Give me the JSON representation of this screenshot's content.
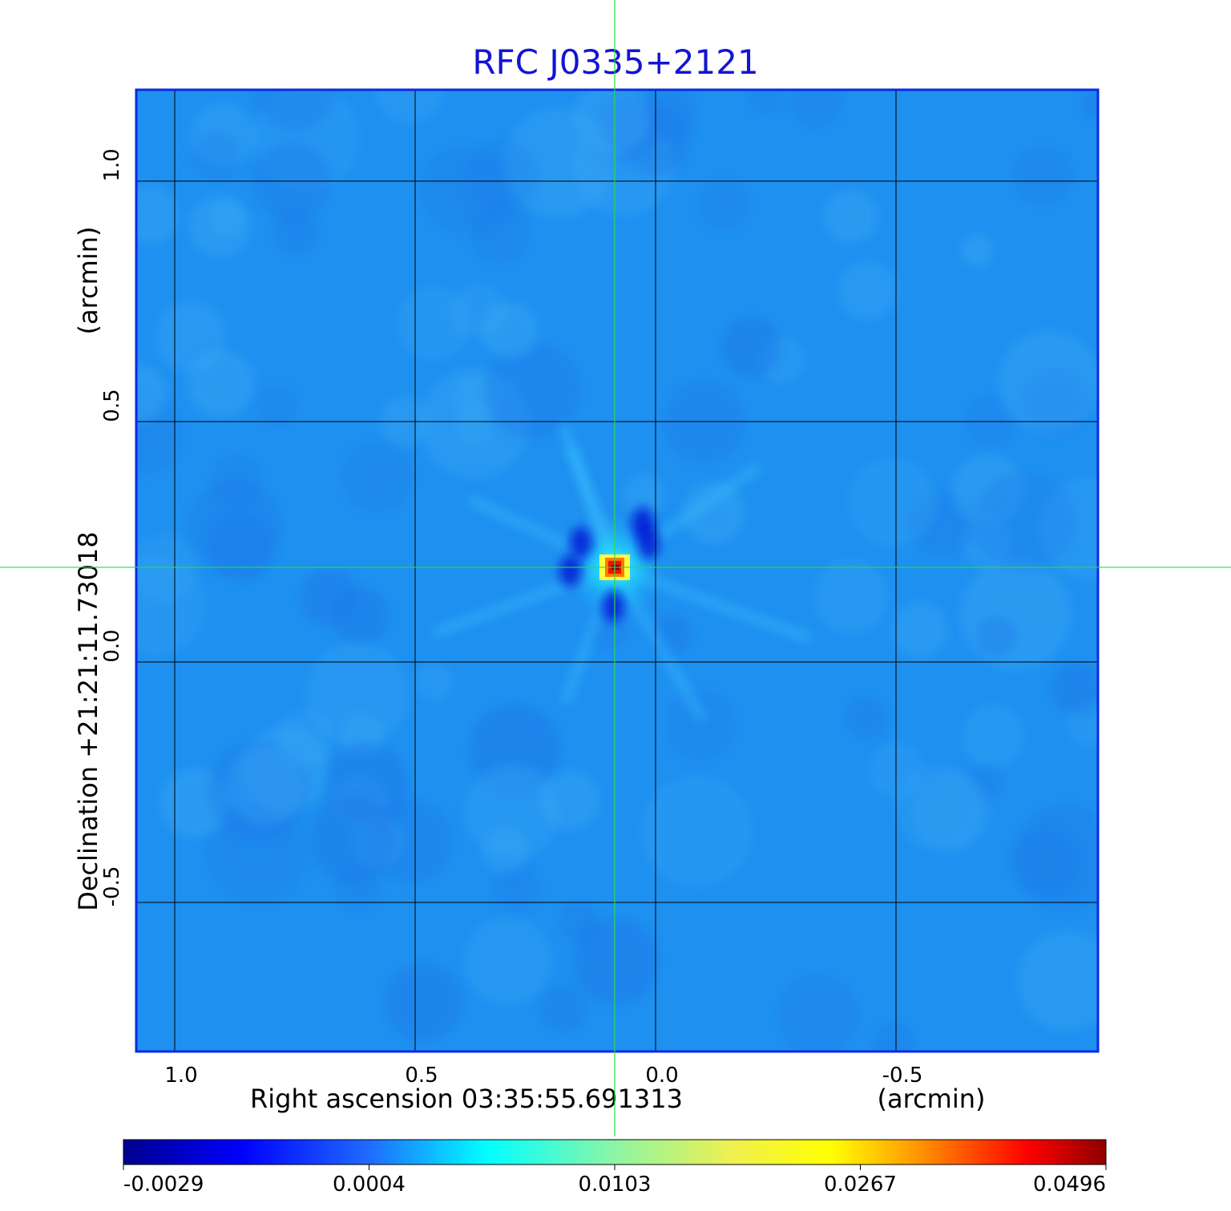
{
  "chart_data": {
    "type": "heatmap",
    "title": "RFC J0335+2121",
    "xlabel": "Right ascension  03:35:55.691313",
    "xunit": "(arcmin)",
    "ylabel": "Declination  +21:21:11.73018",
    "yunit": "(arcmin)",
    "xlim": [
      1.08,
      -0.92
    ],
    "ylim": [
      -0.81,
      1.19
    ],
    "xticks": [
      1.0,
      0.5,
      0.0,
      -0.5
    ],
    "yticks": [
      1.0,
      0.5,
      0.0,
      -0.5
    ],
    "x_tick_labels": [
      "1.0",
      "0.5",
      "0.0",
      "-0.5"
    ],
    "y_tick_labels": [
      "1.0",
      "0.5",
      "0.0",
      "-0.5"
    ],
    "grid": true,
    "crosshair": {
      "x": 0.085,
      "y": 0.197
    },
    "peak": {
      "x": 0.085,
      "y": 0.197,
      "value": 0.0496
    },
    "colorbar": {
      "min": -0.0029,
      "max": 0.0496,
      "tick_labels": [
        "-0.0029",
        "0.0004",
        "0.0103",
        "0.0267",
        "0.0496"
      ]
    }
  },
  "colors": {
    "title": "#1414d2",
    "frame": "#0a2ae6",
    "background_field": "#1e90f0",
    "crosshair": "#22e040",
    "grid": "#000000"
  }
}
